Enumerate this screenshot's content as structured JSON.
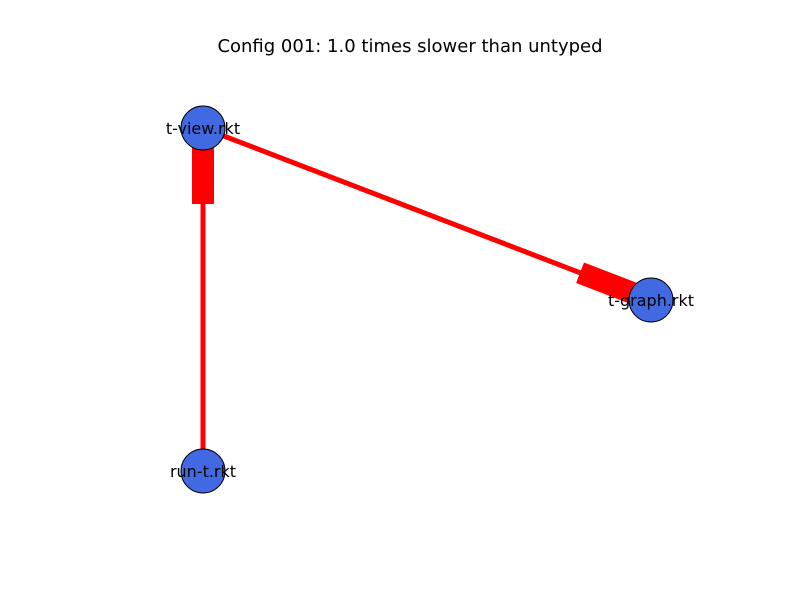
{
  "title": "Config 001: 1.0 times slower than untyped",
  "colors": {
    "edge": "#ff0000",
    "node_fill": "#4169e1",
    "node_stroke": "#000000",
    "background": "#ffffff"
  },
  "nodes": [
    {
      "id": "t-view",
      "label": "t-view.rkt"
    },
    {
      "id": "t-graph",
      "label": "t-graph.rkt"
    },
    {
      "id": "run-t",
      "label": "run-t.rkt"
    }
  ],
  "edges": [
    {
      "from": "t-view",
      "to": "t-graph",
      "arrow_at": "to"
    },
    {
      "from": "run-t",
      "to": "t-view",
      "arrow_at": "to"
    }
  ]
}
